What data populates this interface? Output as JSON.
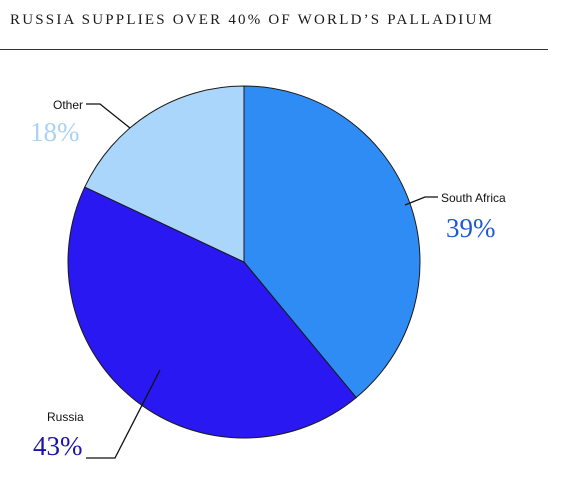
{
  "title": "RUSSIA SUPPLIES OVER 40% OF WORLD’S PALLADIUM",
  "chart_data": {
    "type": "pie",
    "title": "RUSSIA SUPPLIES OVER 40% OF WORLD’S PALLADIUM",
    "slices": [
      {
        "label": "South Africa",
        "value": 39,
        "display": "39%",
        "color": "#2f8cf5",
        "label_color": "#1f58d6"
      },
      {
        "label": "Russia",
        "value": 43,
        "display": "43%",
        "color": "#2a18f2",
        "label_color": "#1a13a8"
      },
      {
        "label": "Other",
        "value": 18,
        "display": "18%",
        "color": "#aad6fb",
        "label_color": "#a9d2f4"
      }
    ],
    "start": "12 o'clock",
    "direction": "clockwise",
    "legend": "none",
    "labels": "outside with leader lines"
  }
}
